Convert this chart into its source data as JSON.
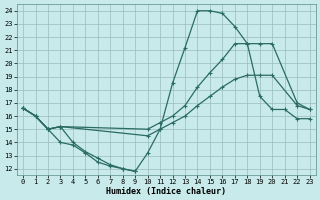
{
  "xlabel": "Humidex (Indice chaleur)",
  "bg_color": "#c8eaea",
  "grid_color": "#9bbcbc",
  "line_color": "#2a6b65",
  "xlim": [
    -0.5,
    23.5
  ],
  "ylim": [
    11.5,
    24.5
  ],
  "xticks": [
    0,
    1,
    2,
    3,
    4,
    5,
    6,
    7,
    8,
    9,
    10,
    11,
    12,
    13,
    14,
    15,
    16,
    17,
    18,
    19,
    20,
    21,
    22,
    23
  ],
  "yticks": [
    12,
    13,
    14,
    15,
    16,
    17,
    18,
    19,
    20,
    21,
    22,
    23,
    24
  ],
  "lines": [
    {
      "x": [
        0,
        1,
        2,
        3,
        4,
        5,
        6,
        7,
        8,
        9,
        10,
        11,
        12,
        13,
        14,
        15,
        16,
        17,
        18,
        19,
        20,
        21,
        22,
        23
      ],
      "y": [
        16.6,
        16.0,
        15.0,
        15.2,
        14.0,
        13.3,
        12.8,
        12.3,
        12.0,
        11.8,
        13.2,
        15.0,
        18.5,
        21.2,
        24.0,
        24.0,
        23.8,
        22.8,
        21.5,
        17.5,
        16.5,
        16.5,
        15.8,
        15.8
      ]
    },
    {
      "x": [
        0,
        1,
        2,
        3,
        10,
        11,
        12,
        13,
        14,
        15,
        16,
        17,
        18,
        19,
        20,
        22,
        23
      ],
      "y": [
        16.6,
        16.0,
        15.0,
        15.2,
        15.0,
        15.5,
        16.0,
        16.8,
        18.2,
        19.3,
        20.3,
        21.5,
        21.5,
        21.5,
        21.5,
        17.0,
        16.5
      ]
    },
    {
      "x": [
        0,
        1,
        2,
        3,
        10,
        11,
        12,
        13,
        14,
        15,
        16,
        17,
        18,
        19,
        20,
        22,
        23
      ],
      "y": [
        16.6,
        16.0,
        15.0,
        15.2,
        14.5,
        15.0,
        15.5,
        16.0,
        16.8,
        17.5,
        18.2,
        18.8,
        19.1,
        19.1,
        19.1,
        16.8,
        16.5
      ]
    },
    {
      "x": [
        0,
        1,
        2,
        3,
        4,
        5,
        6,
        7,
        8,
        9
      ],
      "y": [
        16.6,
        16.0,
        15.0,
        14.0,
        13.8,
        13.2,
        12.5,
        12.2,
        12.0,
        11.8
      ]
    }
  ],
  "marker": "+",
  "markersize": 3,
  "linewidth": 0.9,
  "axis_fontsize": 6,
  "tick_fontsize": 5
}
